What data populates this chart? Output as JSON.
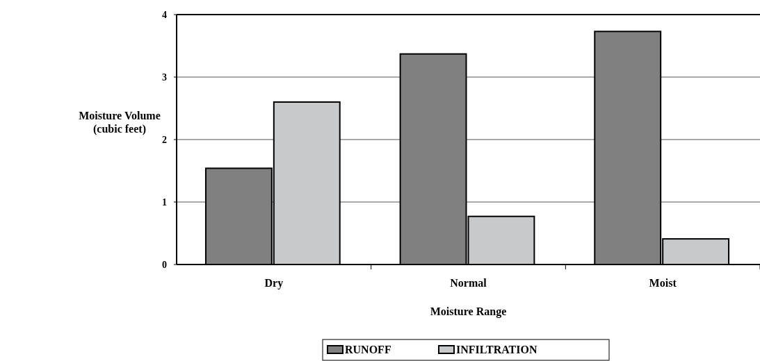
{
  "chart_data": {
    "type": "bar",
    "xlabel": "Moisture Range",
    "ylabel": "Moisture Volume\n(cubic feet)",
    "categories": [
      "Dry",
      "Normal",
      "Moist"
    ],
    "series": [
      {
        "name": "RUNOFF",
        "color": "#808080",
        "values": [
          1.54,
          3.37,
          3.73
        ]
      },
      {
        "name": "INFILTRATION",
        "color": "#c8c9cb",
        "values": [
          2.6,
          0.77,
          0.41
        ]
      }
    ],
    "ylim": [
      0,
      4
    ],
    "yticks": [
      0,
      1,
      2,
      3,
      4
    ],
    "grid": "y",
    "legend": "bottom"
  }
}
